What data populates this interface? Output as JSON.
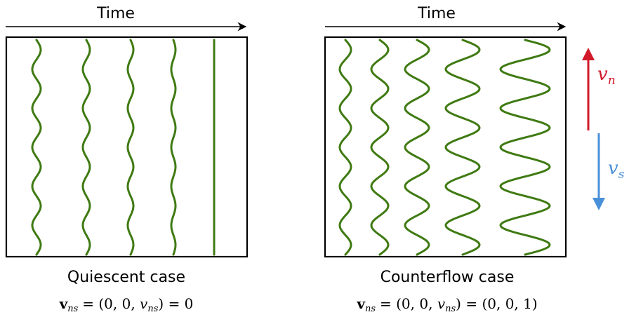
{
  "axis_label": "Time",
  "panels": [
    {
      "case_label": "Quiescent case",
      "equation": {
        "bold_symbol": "v",
        "bold_subscript": "ns",
        "middle": "= (0, 0, ",
        "italic_symbol": "v",
        "italic_subscript": "ns",
        "rhs": ") = 0"
      }
    },
    {
      "case_label": "Counterflow case",
      "equation": {
        "bold_symbol": "v",
        "bold_subscript": "ns",
        "middle": "= (0, 0, ",
        "italic_symbol": "v",
        "italic_subscript": "ns",
        "rhs": ") = (0, 0, 1)"
      }
    }
  ],
  "velocity_labels": {
    "normal": {
      "symbol": "v",
      "subscript": "n",
      "color": "#d11a2a"
    },
    "super": {
      "symbol": "v",
      "subscript": "s",
      "color": "#4a90d9"
    }
  },
  "line_color": "#3f7a12"
}
